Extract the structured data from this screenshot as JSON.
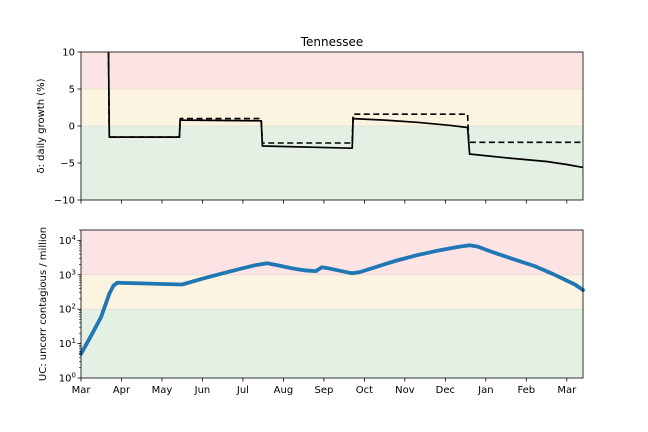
{
  "chart_data": [
    {
      "type": "line",
      "title": "Tennessee",
      "ylabel": "δ: daily growth (%)",
      "ylim": [
        -10,
        10
      ],
      "yscale": "linear",
      "yticks": [
        -10,
        -5,
        0,
        5,
        10
      ],
      "ytick_labels": [
        "−10",
        "−5",
        "0",
        "5",
        "10"
      ],
      "x_range": [
        "Mar",
        "Mar"
      ],
      "grid": false,
      "bands": [
        {
          "from": 5,
          "to": 10,
          "color": "#fde4e4"
        },
        {
          "from": 0,
          "to": 5,
          "color": "#fdf3e1"
        },
        {
          "from": -10,
          "to": 0,
          "color": "#e4f0e3"
        }
      ],
      "series": [
        {
          "style": "solid",
          "color": "#000000",
          "x": [
            0.68,
            0.7,
            1.5,
            2.43,
            2.45,
            2.49,
            4.45,
            4.48,
            6.7,
            6.72,
            7.5,
            8.3,
            9.1,
            9.55,
            9.6,
            9.62,
            10.5,
            11.5,
            12.0,
            12.4
          ],
          "y": [
            10,
            -1.5,
            -1.5,
            -1.5,
            0.9,
            0.8,
            0.7,
            -2.7,
            -3.0,
            1.0,
            0.8,
            0.5,
            0.1,
            -0.2,
            -3.8,
            -3.8,
            -4.3,
            -4.8,
            -5.2,
            -5.6
          ]
        },
        {
          "style": "dashed",
          "color": "#000000",
          "x": [
            0.68,
            0.7,
            2.43,
            2.45,
            4.45,
            4.48,
            6.7,
            6.72,
            9.55,
            9.58,
            12.4
          ],
          "y": [
            10,
            -1.5,
            -1.5,
            1.0,
            1.0,
            -2.3,
            -2.3,
            1.6,
            1.6,
            -2.2,
            -2.2
          ]
        }
      ]
    },
    {
      "type": "line",
      "ylabel": "UC: uncorr contagious / million",
      "yscale": "log",
      "ylim": [
        1,
        20000
      ],
      "yticks": [
        1,
        10,
        100,
        1000,
        10000
      ],
      "ytick_labels": [
        {
          "base": "10",
          "exp": "0"
        },
        {
          "base": "10",
          "exp": "1"
        },
        {
          "base": "10",
          "exp": "2"
        },
        {
          "base": "10",
          "exp": "3"
        },
        {
          "base": "10",
          "exp": "4"
        }
      ],
      "x_range": [
        "Mar",
        "Mar"
      ],
      "xtick_labels": [
        "Mar",
        "Apr",
        "May",
        "Jun",
        "Jul",
        "Aug",
        "Sep",
        "Oct",
        "Nov",
        "Dec",
        "Jan",
        "Feb",
        "Mar"
      ],
      "grid": false,
      "bands": [
        {
          "from": 1000,
          "to": 20000,
          "color": "#fde4e4"
        },
        {
          "from": 100,
          "to": 1000,
          "color": "#fdf3e1"
        },
        {
          "from": 1,
          "to": 100,
          "color": "#e4f0e3"
        }
      ],
      "series": [
        {
          "style": "solid",
          "color": "#1f77b4",
          "x": [
            0.0,
            0.25,
            0.5,
            0.7,
            0.8,
            0.9,
            1.0,
            1.5,
            2.0,
            2.5,
            3.0,
            3.5,
            4.0,
            4.3,
            4.6,
            4.9,
            5.2,
            5.5,
            5.8,
            5.95,
            6.1,
            6.4,
            6.7,
            6.9,
            7.3,
            7.8,
            8.3,
            8.8,
            9.3,
            9.6,
            9.8,
            10.2,
            10.7,
            11.2,
            11.7,
            12.2,
            12.4
          ],
          "y": [
            5,
            17,
            60,
            280,
            480,
            590,
            580,
            560,
            540,
            520,
            770,
            1100,
            1550,
            1900,
            2150,
            1850,
            1550,
            1350,
            1280,
            1650,
            1550,
            1300,
            1100,
            1200,
            1700,
            2600,
            3700,
            5000,
            6400,
            7200,
            6600,
            4400,
            2800,
            1800,
            1000,
            520,
            360
          ]
        }
      ]
    }
  ],
  "colors": {
    "line_blue": "#1f77b4",
    "axis": "#000000"
  }
}
